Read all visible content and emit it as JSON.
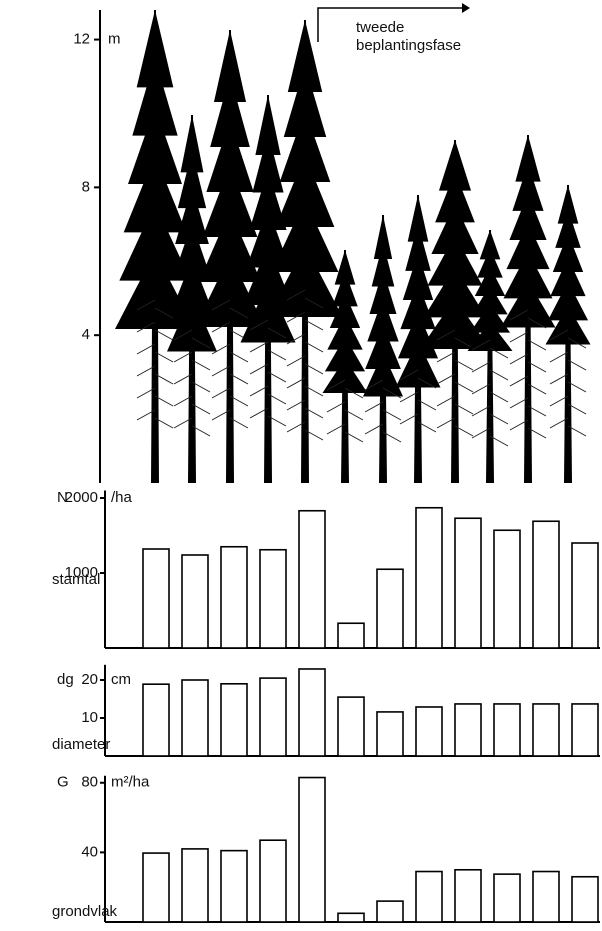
{
  "chart_data": [
    {
      "type": "illustration",
      "y_label": "m",
      "ylim": [
        0,
        12.8
      ],
      "yticks": [
        4,
        8,
        12
      ],
      "annotation": [
        "tweede",
        "beplantingsfase"
      ]
    },
    {
      "type": "bar",
      "symbol": "N",
      "unit": "/ha",
      "label": "stamtal",
      "color": "#ffffff",
      "ylim": [
        0,
        2100
      ],
      "yticks": [
        1000,
        2000
      ],
      "values": [
        1320,
        1240,
        1350,
        1310,
        1830,
        330,
        1050,
        1870,
        1730,
        1570,
        1690,
        1400
      ]
    },
    {
      "type": "bar",
      "symbol": "dg",
      "unit": "cm",
      "label": "diameter",
      "color": "#ffffff",
      "ylim": [
        0,
        24
      ],
      "yticks": [
        10,
        20
      ],
      "values": [
        18.9,
        20,
        19,
        20.5,
        22.9,
        15.5,
        11.6,
        12.9,
        13.7,
        13.7,
        13.7,
        13.7
      ]
    },
    {
      "type": "bar",
      "symbol": "G",
      "unit": "m²/ha",
      "label": "grondvlak",
      "color": "#ffffff",
      "ylim": [
        0,
        84
      ],
      "yticks": [
        40,
        80
      ],
      "values": [
        39.6,
        42,
        41,
        47,
        83,
        5,
        12,
        29,
        30,
        27.5,
        29,
        26
      ]
    }
  ]
}
